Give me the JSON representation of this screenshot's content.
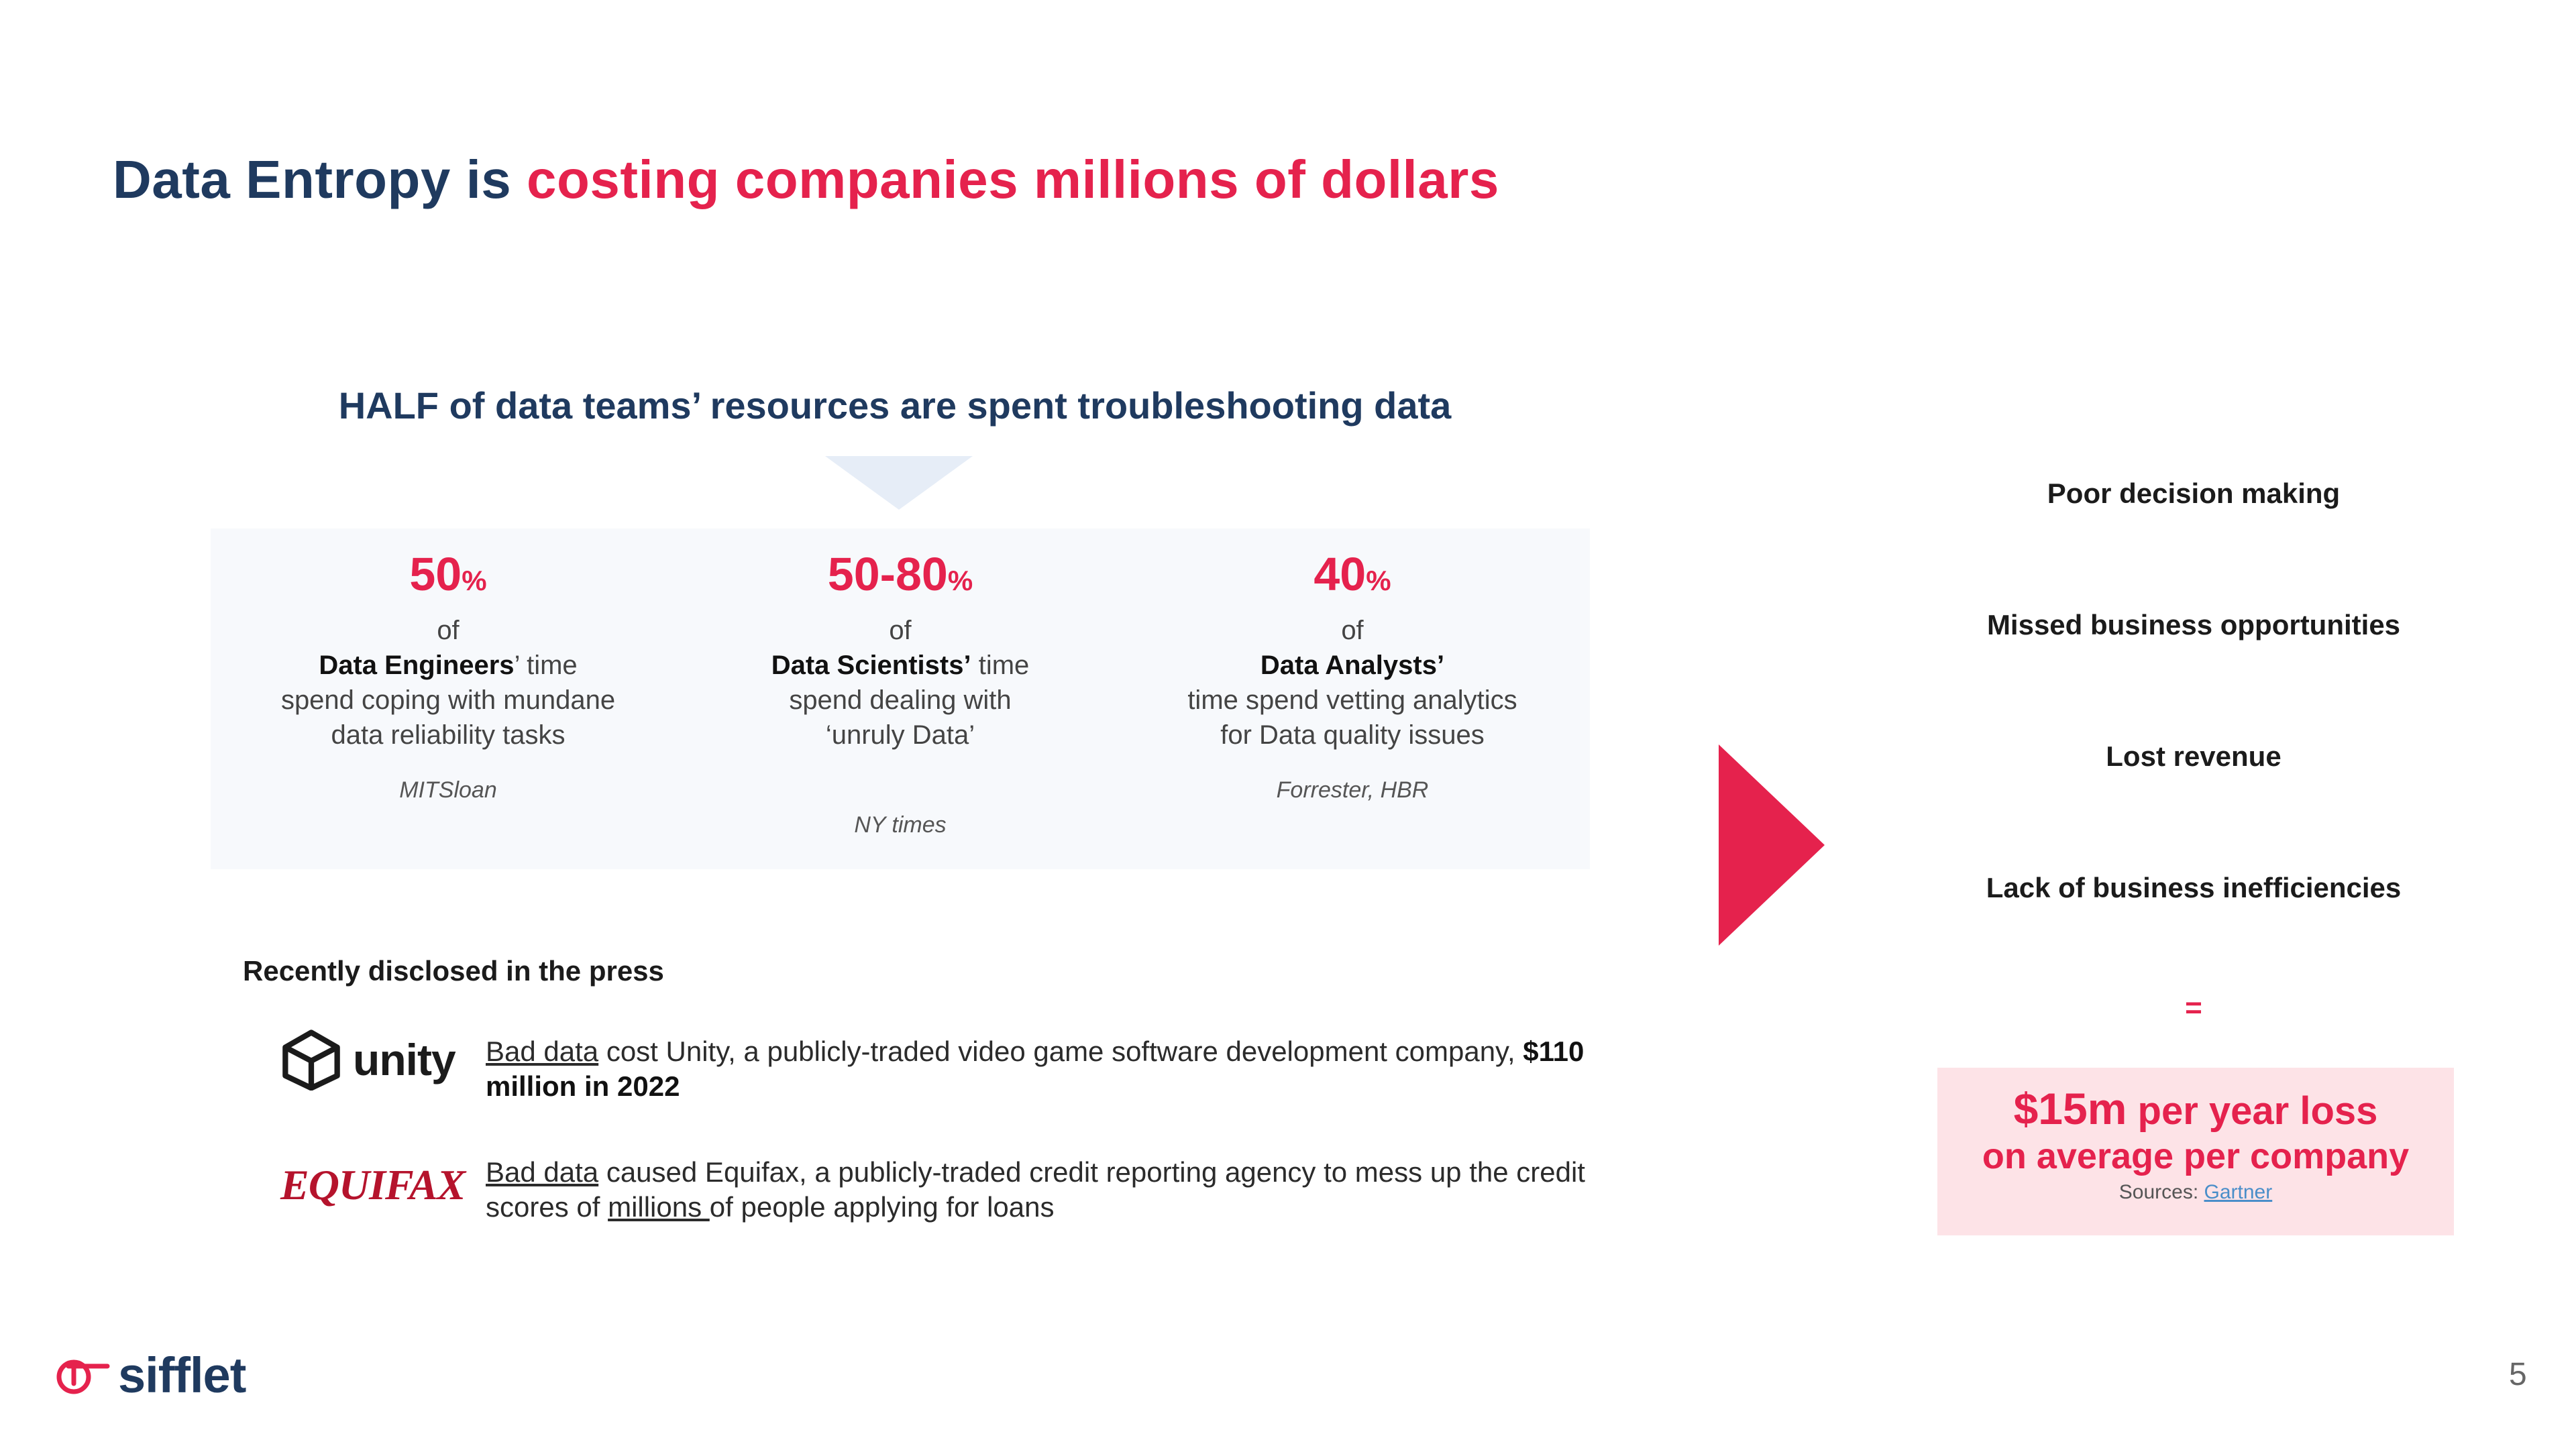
{
  "title": {
    "part1": "Data Entropy is ",
    "part2": "costing companies millions of dollars"
  },
  "half_heading": "HALF of data teams’ resources are spent troubleshooting data",
  "stats": [
    {
      "value": "50",
      "unit": "%",
      "of": "of",
      "role": "Data Engineers",
      "role_suffix": "’ time",
      "description": "spend coping with mundane data reliability tasks",
      "source": "MITSloan"
    },
    {
      "value": "50-80",
      "unit": "%",
      "of": "of",
      "role": "Data Scientists’",
      "role_suffix": " time",
      "description": "spend dealing with ‘unruly Data’",
      "source": "NY times"
    },
    {
      "value": "40",
      "unit": "%",
      "of": "of",
      "role": "Data Analysts’",
      "role_suffix": "",
      "description": "time spend vetting analytics for Data quality issues",
      "source": "Forrester, HBR"
    }
  ],
  "press": {
    "heading": "Recently disclosed in the press",
    "unity": {
      "logo_text": "unity",
      "link_text": "Bad data",
      "text_before_bold": " cost Unity, a publicly-traded video game software development company, ",
      "bold_text": "$110 million in 2022"
    },
    "equifax": {
      "logo_text": "EQUIFAX",
      "link_text": "Bad data",
      "text_middle": " caused Equifax, a publicly-traded credit reporting agency to mess up the credit scores of ",
      "link2_text": "millions ",
      "text_end": "of people applying for loans"
    }
  },
  "impacts": [
    "Poor decision making",
    "Missed business opportunities",
    "Lost revenue",
    "Lack of business inefficiencies"
  ],
  "equals": "=",
  "loss": {
    "amount": "$15m",
    "line1_rest": " per year loss",
    "line2": "on average per company",
    "sources_label": "Sources: ",
    "sources_link": "Gartner"
  },
  "footer": {
    "brand": "sifflet",
    "page_number": "5"
  },
  "colors": {
    "navy": "#1f3a5f",
    "accent_red": "#e5224d",
    "panel_bg": "#f7f9fc",
    "loss_bg": "#fde3e7"
  }
}
